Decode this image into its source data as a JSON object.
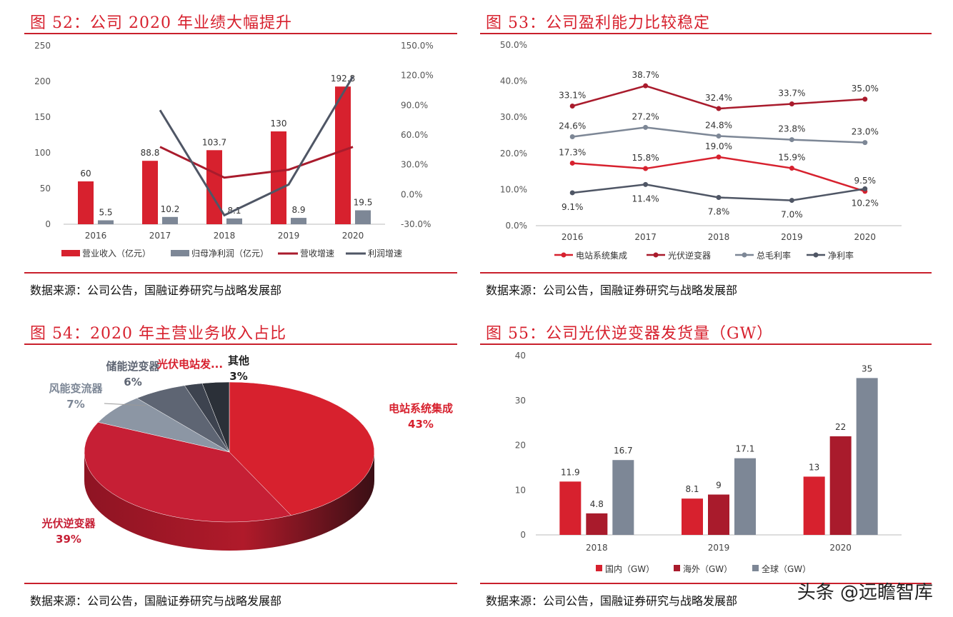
{
  "colors": {
    "red": "#d7212e",
    "darkred": "#a91b2c",
    "gray": "#7d8796",
    "darkgray": "#4f5665",
    "rule": "#c9202c"
  },
  "watermark": "头条 @远瞻智库",
  "charts": [
    {
      "title": "图 52：公司 2020 年业绩大幅提升",
      "source": "数据来源：公司公告，国融证券研究与战略发展部",
      "chart_data": {
        "type": "bar",
        "categories": [
          "2016",
          "2017",
          "2018",
          "2019",
          "2020"
        ],
        "series": [
          {
            "name": "营业收入（亿元）",
            "type": "bar",
            "axis": "left",
            "color": "#d7212e",
            "values": [
              60,
              88.8,
              103.7,
              130,
              192.8
            ],
            "labels": [
              "60",
              "88.8",
              "103.7",
              "130",
              "192.8"
            ]
          },
          {
            "name": "归母净利润（亿元）",
            "type": "bar",
            "axis": "left",
            "color": "#7d8796",
            "values": [
              5.5,
              10.2,
              8.1,
              8.9,
              19.5
            ],
            "labels": [
              "5.5",
              "10.2",
              "8.1",
              "8.9",
              "19.5"
            ]
          },
          {
            "name": "营收增速",
            "type": "line",
            "axis": "right",
            "color": "#a91b2c",
            "values": [
              null,
              48,
              17,
              25,
              48
            ]
          },
          {
            "name": "利润增速",
            "type": "line",
            "axis": "right",
            "color": "#4f5665",
            "values": [
              null,
              85,
              -21,
              10,
              119
            ]
          }
        ],
        "ylim": [
          0,
          250
        ],
        "yticks": [
          "250",
          "200",
          "150",
          "100",
          "50",
          "0"
        ],
        "ytickvals": [
          250,
          200,
          150,
          100,
          50,
          0
        ],
        "y2lim": [
          -30,
          150
        ],
        "y2ticks": [
          "150.0%",
          "120.0%",
          "90.0%",
          "60.0%",
          "30.0%",
          "0.0%",
          "-30.0%"
        ],
        "y2tickvals": [
          150,
          120,
          90,
          60,
          30,
          0,
          -30
        ],
        "legend": "bottom"
      }
    },
    {
      "title": "图 53：公司盈利能力比较稳定",
      "source": "数据来源：公司公告，国融证券研究与战略发展部",
      "chart_data": {
        "type": "line",
        "categories": [
          "2016",
          "2017",
          "2018",
          "2019",
          "2020"
        ],
        "series": [
          {
            "name": "电站系统集成",
            "color": "#d7212e",
            "values": [
              17.3,
              15.8,
              19.0,
              15.9,
              9.5
            ],
            "labels": [
              "17.3%",
              "15.8%",
              "19.0%",
              "15.9%",
              "9.5%"
            ],
            "label_pos": [
              "above",
              "above",
              "above",
              "above",
              "above"
            ]
          },
          {
            "name": "光伏逆变器",
            "color": "#a91b2c",
            "values": [
              33.1,
              38.7,
              32.4,
              33.7,
              35.0
            ],
            "labels": [
              "33.1%",
              "38.7%",
              "32.4%",
              "33.7%",
              "35.0%"
            ],
            "label_pos": [
              "above",
              "above",
              "above",
              "above",
              "above"
            ]
          },
          {
            "name": "总毛利率",
            "color": "#7d8796",
            "values": [
              24.6,
              27.2,
              24.8,
              23.8,
              23.0
            ],
            "labels": [
              "24.6%",
              "27.2%",
              "24.8%",
              "23.8%",
              "23.0%"
            ],
            "label_pos": [
              "above",
              "above",
              "above",
              "above",
              "above"
            ]
          },
          {
            "name": "净利率",
            "color": "#4f5665",
            "values": [
              9.1,
              11.4,
              7.8,
              7.0,
              10.2
            ],
            "labels": [
              "9.1%",
              "11.4%",
              "7.8%",
              "7.0%",
              "10.2%"
            ],
            "label_pos": [
              "below",
              "below",
              "below",
              "below",
              "below"
            ]
          }
        ],
        "ylim": [
          0,
          50
        ],
        "yticks": [
          "50.0%",
          "40.0%",
          "30.0%",
          "20.0%",
          "10.0%",
          "0.0%"
        ],
        "ytickvals": [
          50,
          40,
          30,
          20,
          10,
          0
        ],
        "legend": "bottom"
      }
    },
    {
      "title": "图 54：2020 年主营业务收入占比",
      "source": "数据来源：公司公告，国融证券研究与战略发展部",
      "chart_data": {
        "type": "pie",
        "slices": [
          {
            "name": "电站系统集成",
            "value": 43,
            "label": "43%",
            "color": "#d7212e",
            "label_color": "#d7212e"
          },
          {
            "name": "光伏逆变器",
            "value": 39,
            "label": "39%",
            "color": "#c61f35",
            "label_color": "#c61f35"
          },
          {
            "name": "风能变流器",
            "value": 7,
            "label": "7%",
            "color": "#8c96a4",
            "label_color": "#7d8796"
          },
          {
            "name": "储能逆变器",
            "value": 6,
            "label": "6%",
            "color": "#5e6573",
            "label_color": "#5e6573"
          },
          {
            "name": "光伏电站发...",
            "value": 2,
            "label": "",
            "color": "#3d434f",
            "label_color": "#d7212e"
          },
          {
            "name": "其他",
            "value": 3,
            "label": "3%",
            "color": "#2b3038",
            "label_color": "#222"
          }
        ]
      }
    },
    {
      "title": "图 55：公司光伏逆变器发货量（GW）",
      "source": "数据来源：公司公告，国融证券研究与战略发展部",
      "chart_data": {
        "type": "bar",
        "categories": [
          "2018",
          "2019",
          "2020"
        ],
        "series": [
          {
            "name": "国内（GW）",
            "color": "#d7212e",
            "values": [
              11.9,
              8.1,
              13
            ],
            "labels": [
              "11.9",
              "8.1",
              "13"
            ]
          },
          {
            "name": "海外（GW）",
            "color": "#a91b2c",
            "values": [
              4.8,
              9,
              22
            ],
            "labels": [
              "4.8",
              "9",
              "22"
            ]
          },
          {
            "name": "全球（GW）",
            "color": "#7d8796",
            "values": [
              16.7,
              17.1,
              35
            ],
            "labels": [
              "16.7",
              "17.1",
              "35"
            ]
          }
        ],
        "ylim": [
          0,
          40
        ],
        "yticks": [
          "40",
          "30",
          "20",
          "10",
          "0"
        ],
        "ytickvals": [
          40,
          30,
          20,
          10,
          0
        ],
        "legend": "bottom"
      }
    }
  ]
}
